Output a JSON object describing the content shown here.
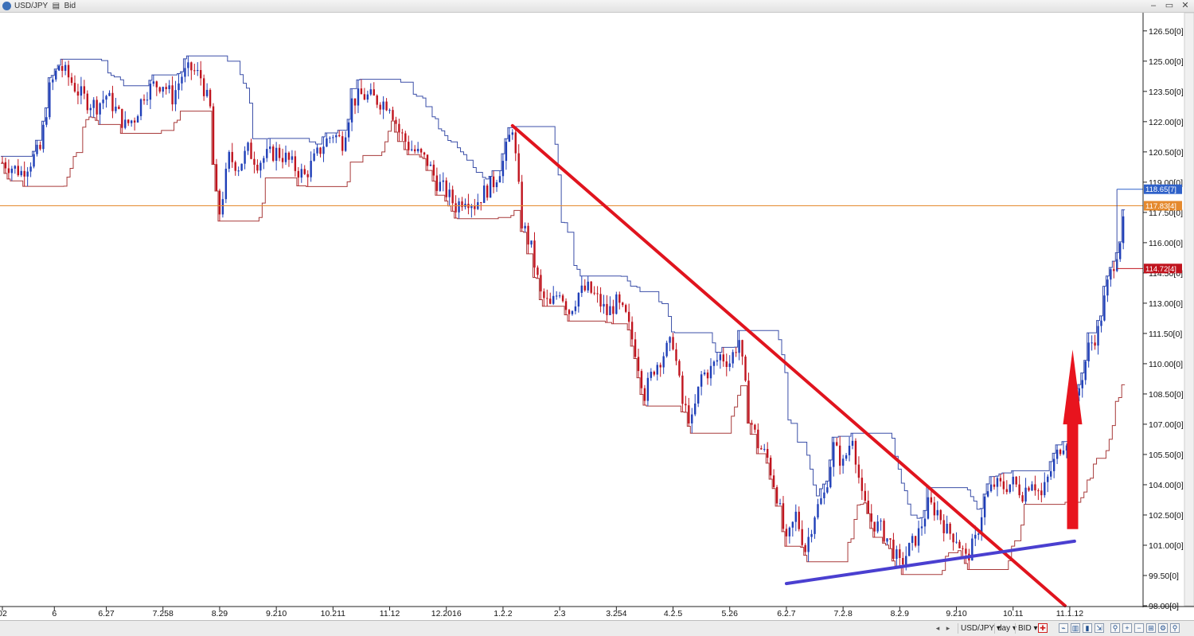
{
  "window": {
    "title": "USD/JPY",
    "mode_label": "Bid",
    "minimize_glyph": "–",
    "restore_glyph": "▭",
    "close_glyph": "✕"
  },
  "status_bar": {
    "symbol_dropdown": "USD/JPY ▾",
    "period_dropdown": "day ▾",
    "price_dropdown": "BID ▾",
    "icon_names": [
      "scroll-left-icon",
      "scroll-right-icon",
      "crosshair-icon",
      "line-chart-icon",
      "bar-chart-icon",
      "candle-chart-icon",
      "auto-scroll-icon",
      "zoom-icon",
      "zoom-in-icon",
      "zoom-out-icon",
      "tile-icon",
      "settings-icon",
      "find-icon"
    ]
  },
  "colors": {
    "up_candle": "#1f3fb8",
    "down_candle": "#c0141e",
    "bear_trendline": "#e0141e",
    "bull_trendline": "#4a3fd0",
    "arrow": "#e8141e",
    "current_price_line": "#e58a2e",
    "grid_axis": "#222222",
    "bg": "#ffffff"
  },
  "chart_data": {
    "type": "candlestick",
    "title": "",
    "xlabel": "",
    "ylabel": "",
    "ylim": [
      98.0,
      127.4
    ],
    "y_ticks": [
      "126.50[0]",
      "125.00[0]",
      "123.50[0]",
      "122.00[0]",
      "120.50[0]",
      "119.00[0]",
      "117.50[0]",
      "116.00[0]",
      "114.50[0]",
      "113.00[0]",
      "111.50[0]",
      "110.00[0]",
      "108.50[0]",
      "107.00[0]",
      "105.50[0]",
      "104.00[0]",
      "102.50[0]",
      "101.00[0]",
      "99.50[0]",
      "98.00[0]"
    ],
    "x_tick_labels": [
      "02",
      "6",
      "6.27",
      "7.258",
      "8.29",
      "9.210",
      "10.211",
      "11.12",
      "12.2016",
      "1.2.2",
      "2.3",
      "3.254",
      "4.2.5",
      "5.26",
      "6.2.7",
      "7.2.8",
      "8.2.9",
      "9.210",
      "10.11",
      "11.1.12"
    ],
    "x_tick_slot": [
      0,
      5.5,
      11,
      17,
      23,
      29,
      35,
      41,
      47,
      53,
      59,
      65,
      71,
      77,
      83,
      89,
      95,
      101,
      107,
      113
    ],
    "slots": 120,
    "price_markers": {
      "high": {
        "value": 118.65,
        "label": "118.65[7]",
        "color": "#2f61c9"
      },
      "current": {
        "value": 117.83,
        "label": "117.83[4]",
        "color": "#e58a2e"
      },
      "low": {
        "value": 114.72,
        "label": "114.72[4]",
        "color": "#c0141e"
      }
    },
    "close_path": [
      [
        0,
        120.0
      ],
      [
        2,
        119.5
      ],
      [
        4,
        120.6
      ],
      [
        5,
        123.6
      ],
      [
        6,
        124.8
      ],
      [
        7,
        124.2
      ],
      [
        8,
        123.5
      ],
      [
        9,
        123.0
      ],
      [
        10,
        122.8
      ],
      [
        11,
        123.3
      ],
      [
        12,
        122.6
      ],
      [
        13,
        121.8
      ],
      [
        14,
        122.2
      ],
      [
        15,
        123.4
      ],
      [
        16,
        123.8
      ],
      [
        17,
        123.9
      ],
      [
        18,
        123.2
      ],
      [
        19,
        124.3
      ],
      [
        20,
        124.6
      ],
      [
        21,
        124.2
      ],
      [
        22,
        122.6
      ],
      [
        22.5,
        118.5
      ],
      [
        23,
        117.5
      ],
      [
        24,
        120.2
      ],
      [
        25,
        119.8
      ],
      [
        26,
        120.6
      ],
      [
        27,
        120.0
      ],
      [
        28,
        120.3
      ],
      [
        29,
        120.5
      ],
      [
        30,
        120.2
      ],
      [
        31,
        119.7
      ],
      [
        32,
        119.3
      ],
      [
        33,
        120.1
      ],
      [
        34,
        120.9
      ],
      [
        35,
        121.4
      ],
      [
        36,
        121.0
      ],
      [
        37,
        123.0
      ],
      [
        38,
        123.3
      ],
      [
        39,
        123.2
      ],
      [
        40,
        123.0
      ],
      [
        41,
        122.9
      ],
      [
        42,
        121.5
      ],
      [
        43,
        120.8
      ],
      [
        44,
        120.4
      ],
      [
        45,
        120.0
      ],
      [
        46,
        119.0
      ],
      [
        47,
        118.5
      ],
      [
        48,
        117.8
      ],
      [
        49,
        118.3
      ],
      [
        50,
        117.9
      ],
      [
        51,
        118.5
      ],
      [
        52,
        119.0
      ],
      [
        53,
        120.0
      ],
      [
        54,
        121.8
      ],
      [
        55,
        117.0
      ],
      [
        56,
        115.7
      ],
      [
        57,
        113.4
      ],
      [
        58,
        112.8
      ],
      [
        59,
        113.7
      ],
      [
        60,
        112.6
      ],
      [
        61,
        113.5
      ],
      [
        62,
        113.7
      ],
      [
        63,
        113.2
      ],
      [
        64,
        112.5
      ],
      [
        65,
        113.0
      ],
      [
        66,
        112.3
      ],
      [
        67,
        110.7
      ],
      [
        68,
        108.5
      ],
      [
        69,
        109.8
      ],
      [
        70,
        110.5
      ],
      [
        71,
        111.1
      ],
      [
        72,
        108.0
      ],
      [
        73,
        107.1
      ],
      [
        74,
        109.4
      ],
      [
        75,
        109.7
      ],
      [
        76,
        110.4
      ],
      [
        77,
        110.1
      ],
      [
        78,
        111.2
      ],
      [
        79,
        107.5
      ],
      [
        80,
        106.0
      ],
      [
        81,
        105.3
      ],
      [
        82,
        103.5
      ],
      [
        83,
        101.0
      ],
      [
        84,
        102.5
      ],
      [
        85,
        100.8
      ],
      [
        86,
        102.6
      ],
      [
        87,
        103.5
      ],
      [
        88,
        105.9
      ],
      [
        89,
        105.0
      ],
      [
        90,
        106.5
      ],
      [
        91,
        103.3
      ],
      [
        92,
        102.2
      ],
      [
        93,
        101.8
      ],
      [
        94,
        101.1
      ],
      [
        95,
        100.0
      ],
      [
        96,
        100.8
      ],
      [
        97,
        101.6
      ],
      [
        98,
        103.0
      ],
      [
        99,
        102.7
      ],
      [
        100,
        101.7
      ],
      [
        101,
        101.4
      ],
      [
        102,
        100.3
      ],
      [
        103,
        101.2
      ],
      [
        104,
        103.3
      ],
      [
        105,
        104.0
      ],
      [
        106,
        103.9
      ],
      [
        107,
        104.1
      ],
      [
        108,
        103.6
      ],
      [
        109,
        104.3
      ],
      [
        110,
        103.4
      ],
      [
        111,
        104.7
      ],
      [
        112,
        105.9
      ],
      [
        113,
        106.5
      ],
      [
        114,
        108.8
      ],
      [
        115,
        110.8
      ],
      [
        116,
        111.6
      ],
      [
        117,
        113.9
      ],
      [
        118,
        115.6
      ],
      [
        119,
        117.5
      ],
      [
        120,
        117.83
      ]
    ],
    "envelope_note": "",
    "annotations": [
      {
        "type": "trendline",
        "name": "",
        "color": "#e0141e",
        "from": [
          54,
          121.8
        ],
        "to": [
          112.5,
          98.0
        ]
      },
      {
        "type": "trendline",
        "name": "",
        "color": "#4a3fd0",
        "from": [
          83,
          99.1
        ],
        "to": [
          113.5,
          101.2
        ]
      },
      {
        "type": "arrow",
        "direction": "up",
        "color": "#e8141e",
        "from_value": 101.8,
        "to_value": 110.7
      }
    ]
  }
}
